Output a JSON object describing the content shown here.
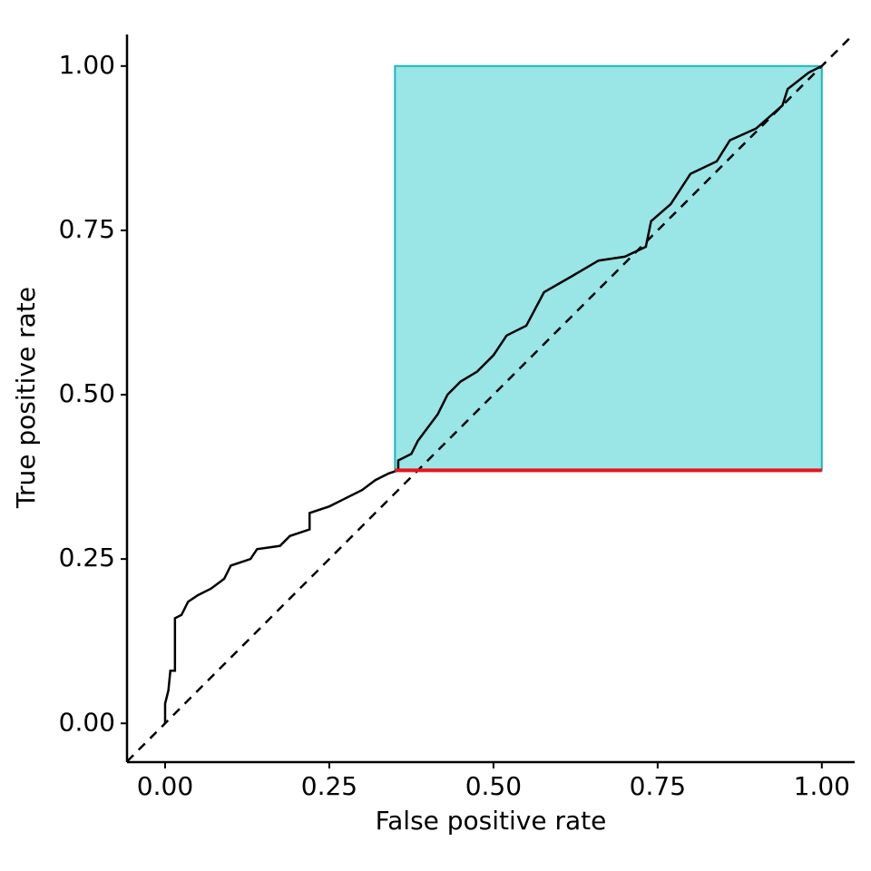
{
  "chart_data": {
    "type": "line",
    "x_label": "False positive rate",
    "y_label": "True positive rate",
    "x": [
      0,
      0,
      0.005,
      0.008,
      0.015,
      0.015,
      0.025,
      0.035,
      0.05,
      0.07,
      0.09,
      0.1,
      0.13,
      0.14,
      0.175,
      0.19,
      0.22,
      0.22,
      0.25,
      0.27,
      0.3,
      0.32,
      0.34,
      0.355,
      0.355,
      0.375,
      0.385,
      0.4,
      0.415,
      0.43,
      0.45,
      0.475,
      0.5,
      0.52,
      0.55,
      0.577,
      0.619,
      0.66,
      0.7,
      0.732,
      0.74,
      0.77,
      0.8,
      0.84,
      0.86,
      0.9,
      0.94,
      0.948,
      0.98,
      1
    ],
    "values": [
      0,
      0.03,
      0.05,
      0.08,
      0.08,
      0.16,
      0.165,
      0.185,
      0.195,
      0.205,
      0.22,
      0.24,
      0.25,
      0.265,
      0.27,
      0.285,
      0.295,
      0.32,
      0.33,
      0.34,
      0.355,
      0.37,
      0.38,
      0.385,
      0.4,
      0.41,
      0.43,
      0.45,
      0.47,
      0.5,
      0.52,
      0.535,
      0.56,
      0.59,
      0.605,
      0.656,
      0.68,
      0.704,
      0.71,
      0.725,
      0.764,
      0.79,
      0.836,
      0.855,
      0.887,
      0.905,
      0.94,
      0.965,
      0.99,
      1
    ],
    "color": "#000000",
    "region": {
      "xmin": 0.35,
      "xmax": 1,
      "ymin": 0.385,
      "ymax": 1,
      "fill": "#9ae5e6",
      "stroke": "#19b8be",
      "baseline_color": "#e8141c"
    },
    "diagonal": true,
    "xlim": [
      -0.058,
      1.05
    ],
    "ylim": [
      -0.059,
      1.048
    ],
    "xticks": [
      {
        "value": 0,
        "label": "0.00"
      },
      {
        "value": 0.25,
        "label": "0.25"
      },
      {
        "value": 0.5,
        "label": "0.50"
      },
      {
        "value": 0.75,
        "label": "0.75"
      },
      {
        "value": 1,
        "label": "1.00"
      }
    ],
    "yticks": [
      {
        "value": 0,
        "label": "0.00"
      },
      {
        "value": 0.25,
        "label": "0.25"
      },
      {
        "value": 0.5,
        "label": "0.50"
      },
      {
        "value": 0.75,
        "label": "0.75"
      },
      {
        "value": 1,
        "label": "1.00"
      }
    ],
    "grid": false
  }
}
